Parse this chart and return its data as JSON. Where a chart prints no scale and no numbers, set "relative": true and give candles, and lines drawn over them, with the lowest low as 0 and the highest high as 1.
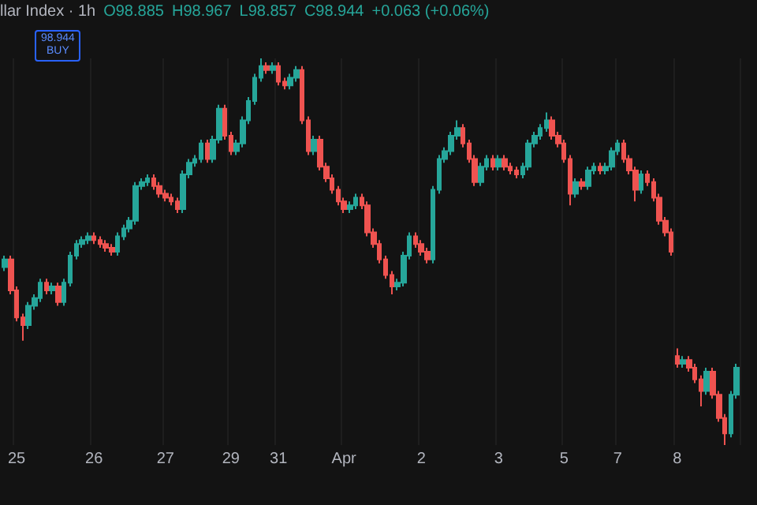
{
  "chart_data": {
    "type": "candlestick",
    "title": "llar Index · 1h",
    "relative": true,
    "grid": "x",
    "colors": [
      "#26a69a",
      "#ef5350",
      "#ef5350",
      "#ef5350",
      "#26a69a",
      "#26a69a",
      "#26a69a",
      "#ef5350",
      "#26a69a",
      "#ef5350",
      "#26a69a",
      "#26a69a",
      "#26a69a",
      "#26a69a",
      "#26a69a",
      "#ef5350",
      "#ef5350",
      "#ef5350",
      "#ef5350",
      "#26a69a",
      "#26a69a",
      "#26a69a",
      "#26a69a",
      "#26a69a",
      "#26a69a",
      "#ef5350",
      "#ef5350",
      "#ef5350",
      "#ef5350",
      "#ef5350",
      "#26a69a",
      "#26a69a",
      "#26a69a",
      "#26a69a",
      "#ef5350",
      "#26a69a",
      "#26a69a",
      "#ef5350",
      "#ef5350",
      "#26a69a",
      "#26a69a",
      "#26a69a",
      "#26a69a",
      "#26a69a",
      "#ef5350",
      "#26a69a",
      "#ef5350",
      "#ef5350",
      "#26a69a",
      "#26a69a",
      "#ef5350",
      "#ef5350",
      "#26a69a",
      "#ef5350",
      "#ef5350",
      "#ef5350",
      "#ef5350",
      "#ef5350",
      "#26a69a",
      "#26a69a",
      "#ef5350",
      "#ef5350",
      "#ef5350",
      "#ef5350",
      "#ef5350",
      "#ef5350",
      "#26a69a",
      "#26a69a",
      "#26a69a",
      "#ef5350",
      "#ef5350",
      "#ef5350",
      "#26a69a",
      "#26a69a",
      "#26a69a",
      "#26a69a",
      "#26a69a",
      "#ef5350",
      "#ef5350",
      "#ef5350",
      "#26a69a",
      "#26a69a",
      "#ef5350",
      "#26a69a",
      "#ef5350",
      "#ef5350",
      "#ef5350",
      "#26a69a",
      "#26a69a",
      "#26a69a",
      "#26a69a",
      "#26a69a",
      "#ef5350",
      "#ef5350",
      "#ef5350",
      "#ef5350",
      "#26a69a",
      "#ef5350",
      "#26a69a",
      "#26a69a",
      "#ef5350",
      "#26a69a",
      "#26a69a",
      "#26a69a",
      "#ef5350",
      "#ef5350",
      "#ef5350",
      "#26a69a",
      "#ef5350",
      "#ef5350",
      "#ef5350",
      "#ef5350",
      "#ef5350",
      "#ef5350",
      "#26a69a",
      "#ef5350",
      "#ef5350",
      "#ef5350",
      "#26a69a",
      "#ef5350",
      "#ef5350",
      "#ef5350",
      "#26a69a",
      "#26a69a"
    ],
    "annotations": [
      "O98.885",
      "H98.967",
      "L98.857",
      "C98.944",
      "+0.063 (+0.06%)",
      "98.944",
      "BUY"
    ],
    "categories": [
      null,
      null,
      "25",
      null,
      null,
      null,
      null,
      null,
      null,
      null,
      null,
      null,
      null,
      null,
      null,
      "26",
      null,
      null,
      null,
      null,
      null,
      null,
      null,
      null,
      null,
      null,
      null,
      "27",
      null,
      null,
      null,
      null,
      null,
      null,
      null,
      null,
      null,
      null,
      "29",
      null,
      null,
      null,
      null,
      null,
      null,
      null,
      "31",
      null,
      null,
      null,
      null,
      null,
      null,
      null,
      null,
      null,
      null,
      "Apr",
      null,
      null,
      null,
      null,
      null,
      null,
      null,
      null,
      null,
      null,
      null,
      null,
      "2",
      null,
      null,
      null,
      null,
      null,
      null,
      null,
      null,
      null,
      null,
      null,
      null,
      "3",
      null,
      null,
      null,
      null,
      null,
      null,
      null,
      null,
      null,
      null,
      "5",
      null,
      null,
      null,
      null,
      null,
      null,
      null,
      null,
      "7",
      null,
      null,
      null,
      null,
      null,
      null,
      null,
      null,
      null,
      "8",
      null,
      null,
      null,
      null,
      null,
      null,
      null,
      null,
      null,
      null
    ],
    "ohlc": [
      [
        0.46,
        0.49,
        0.45,
        0.48
      ],
      [
        0.48,
        0.49,
        0.39,
        0.4
      ],
      [
        0.4,
        0.41,
        0.32,
        0.33
      ],
      [
        0.33,
        0.34,
        0.27,
        0.31
      ],
      [
        0.31,
        0.37,
        0.3,
        0.36
      ],
      [
        0.36,
        0.39,
        0.35,
        0.38
      ],
      [
        0.38,
        0.43,
        0.37,
        0.42
      ],
      [
        0.42,
        0.43,
        0.39,
        0.4
      ],
      [
        0.4,
        0.42,
        0.39,
        0.41
      ],
      [
        0.41,
        0.42,
        0.36,
        0.37
      ],
      [
        0.37,
        0.43,
        0.36,
        0.42
      ],
      [
        0.42,
        0.5,
        0.41,
        0.49
      ],
      [
        0.49,
        0.53,
        0.48,
        0.52
      ],
      [
        0.52,
        0.54,
        0.51,
        0.53
      ],
      [
        0.53,
        0.55,
        0.52,
        0.54
      ],
      [
        0.54,
        0.55,
        0.52,
        0.53
      ],
      [
        0.53,
        0.54,
        0.51,
        0.52
      ],
      [
        0.52,
        0.53,
        0.5,
        0.51
      ],
      [
        0.51,
        0.52,
        0.49,
        0.5
      ],
      [
        0.5,
        0.55,
        0.49,
        0.54
      ],
      [
        0.54,
        0.57,
        0.53,
        0.56
      ],
      [
        0.56,
        0.59,
        0.55,
        0.58
      ],
      [
        0.58,
        0.68,
        0.57,
        0.67
      ],
      [
        0.67,
        0.69,
        0.66,
        0.68
      ],
      [
        0.68,
        0.7,
        0.67,
        0.69
      ],
      [
        0.69,
        0.7,
        0.66,
        0.67
      ],
      [
        0.67,
        0.68,
        0.64,
        0.65
      ],
      [
        0.65,
        0.66,
        0.63,
        0.64
      ],
      [
        0.64,
        0.65,
        0.62,
        0.63
      ],
      [
        0.63,
        0.64,
        0.6,
        0.61
      ],
      [
        0.61,
        0.71,
        0.6,
        0.7
      ],
      [
        0.7,
        0.74,
        0.69,
        0.73
      ],
      [
        0.73,
        0.75,
        0.72,
        0.74
      ],
      [
        0.74,
        0.79,
        0.73,
        0.78
      ],
      [
        0.78,
        0.79,
        0.73,
        0.74
      ],
      [
        0.74,
        0.8,
        0.73,
        0.79
      ],
      [
        0.79,
        0.88,
        0.78,
        0.87
      ],
      [
        0.87,
        0.88,
        0.79,
        0.8
      ],
      [
        0.8,
        0.81,
        0.75,
        0.76
      ],
      [
        0.76,
        0.79,
        0.75,
        0.78
      ],
      [
        0.78,
        0.85,
        0.77,
        0.84
      ],
      [
        0.84,
        0.9,
        0.83,
        0.89
      ],
      [
        0.89,
        0.96,
        0.88,
        0.95
      ],
      [
        0.95,
        1.0,
        0.94,
        0.98
      ],
      [
        0.98,
        0.99,
        0.96,
        0.97
      ],
      [
        0.97,
        0.99,
        0.96,
        0.98
      ],
      [
        0.98,
        0.99,
        0.93,
        0.94
      ],
      [
        0.94,
        0.95,
        0.92,
        0.93
      ],
      [
        0.93,
        0.96,
        0.92,
        0.95
      ],
      [
        0.95,
        0.98,
        0.94,
        0.97
      ],
      [
        0.97,
        0.98,
        0.83,
        0.84
      ],
      [
        0.84,
        0.85,
        0.75,
        0.76
      ],
      [
        0.76,
        0.8,
        0.75,
        0.79
      ],
      [
        0.79,
        0.8,
        0.71,
        0.72
      ],
      [
        0.72,
        0.73,
        0.68,
        0.69
      ],
      [
        0.69,
        0.7,
        0.65,
        0.66
      ],
      [
        0.66,
        0.67,
        0.62,
        0.63
      ],
      [
        0.63,
        0.64,
        0.6,
        0.61
      ],
      [
        0.61,
        0.63,
        0.6,
        0.62
      ],
      [
        0.62,
        0.65,
        0.61,
        0.64
      ],
      [
        0.64,
        0.65,
        0.61,
        0.62
      ],
      [
        0.62,
        0.63,
        0.54,
        0.55
      ],
      [
        0.55,
        0.56,
        0.51,
        0.52
      ],
      [
        0.52,
        0.53,
        0.47,
        0.48
      ],
      [
        0.48,
        0.49,
        0.43,
        0.44
      ],
      [
        0.44,
        0.45,
        0.39,
        0.41
      ],
      [
        0.41,
        0.43,
        0.4,
        0.42
      ],
      [
        0.42,
        0.5,
        0.41,
        0.49
      ],
      [
        0.49,
        0.55,
        0.48,
        0.54
      ],
      [
        0.54,
        0.55,
        0.51,
        0.52
      ],
      [
        0.52,
        0.53,
        0.49,
        0.5
      ],
      [
        0.5,
        0.51,
        0.47,
        0.48
      ],
      [
        0.48,
        0.67,
        0.47,
        0.66
      ],
      [
        0.66,
        0.75,
        0.65,
        0.74
      ],
      [
        0.74,
        0.77,
        0.73,
        0.76
      ],
      [
        0.76,
        0.81,
        0.75,
        0.8
      ],
      [
        0.8,
        0.84,
        0.79,
        0.82
      ],
      [
        0.82,
        0.83,
        0.77,
        0.78
      ],
      [
        0.78,
        0.79,
        0.73,
        0.74
      ],
      [
        0.74,
        0.75,
        0.67,
        0.68
      ],
      [
        0.68,
        0.73,
        0.67,
        0.72
      ],
      [
        0.72,
        0.75,
        0.71,
        0.74
      ],
      [
        0.74,
        0.75,
        0.71,
        0.72
      ],
      [
        0.72,
        0.75,
        0.71,
        0.74
      ],
      [
        0.74,
        0.75,
        0.71,
        0.72
      ],
      [
        0.72,
        0.73,
        0.7,
        0.71
      ],
      [
        0.71,
        0.72,
        0.69,
        0.7
      ],
      [
        0.7,
        0.73,
        0.69,
        0.72
      ],
      [
        0.72,
        0.79,
        0.71,
        0.78
      ],
      [
        0.78,
        0.81,
        0.77,
        0.8
      ],
      [
        0.8,
        0.83,
        0.79,
        0.82
      ],
      [
        0.82,
        0.86,
        0.81,
        0.84
      ],
      [
        0.84,
        0.85,
        0.79,
        0.8
      ],
      [
        0.8,
        0.81,
        0.77,
        0.78
      ],
      [
        0.78,
        0.79,
        0.73,
        0.74
      ],
      [
        0.74,
        0.75,
        0.62,
        0.65
      ],
      [
        0.65,
        0.69,
        0.64,
        0.68
      ],
      [
        0.68,
        0.69,
        0.66,
        0.67
      ],
      [
        0.67,
        0.72,
        0.66,
        0.71
      ],
      [
        0.71,
        0.73,
        0.7,
        0.72
      ],
      [
        0.72,
        0.73,
        0.7,
        0.71
      ],
      [
        0.71,
        0.73,
        0.7,
        0.72
      ],
      [
        0.72,
        0.77,
        0.71,
        0.76
      ],
      [
        0.76,
        0.79,
        0.75,
        0.78
      ],
      [
        0.78,
        0.79,
        0.73,
        0.74
      ],
      [
        0.74,
        0.75,
        0.7,
        0.71
      ],
      [
        0.71,
        0.72,
        0.63,
        0.66
      ],
      [
        0.66,
        0.71,
        0.65,
        0.7
      ],
      [
        0.7,
        0.71,
        0.67,
        0.68
      ],
      [
        0.68,
        0.69,
        0.63,
        0.64
      ],
      [
        0.64,
        0.65,
        0.57,
        0.58
      ],
      [
        0.58,
        0.59,
        0.54,
        0.55
      ],
      [
        0.55,
        0.56,
        0.49,
        0.5
      ],
      [
        0.23,
        0.25,
        0.2,
        0.21
      ],
      [
        0.21,
        0.23,
        0.2,
        0.22
      ],
      [
        0.22,
        0.23,
        0.19,
        0.2
      ],
      [
        0.2,
        0.21,
        0.16,
        0.17
      ],
      [
        0.17,
        0.18,
        0.1,
        0.14
      ],
      [
        0.14,
        0.2,
        0.13,
        0.19
      ],
      [
        0.19,
        0.2,
        0.12,
        0.13
      ],
      [
        0.13,
        0.14,
        0.06,
        0.07
      ],
      [
        0.07,
        0.08,
        0.0,
        0.03
      ],
      [
        0.03,
        0.14,
        0.02,
        0.13
      ],
      [
        0.13,
        0.21,
        0.12,
        0.2
      ]
    ]
  }
}
